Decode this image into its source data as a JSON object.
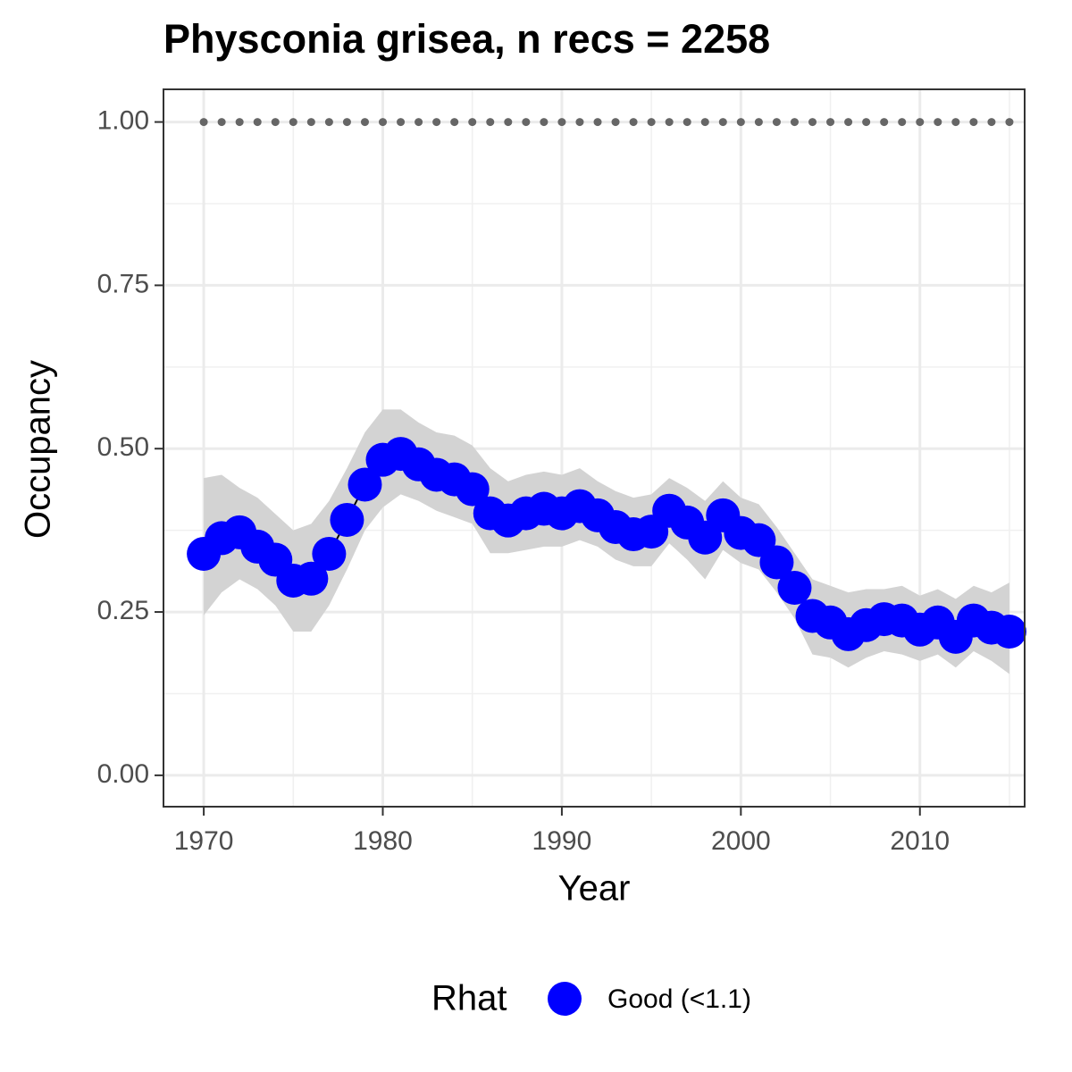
{
  "chart_data": {
    "type": "line",
    "title": "Physconia grisea, n recs = 2258",
    "x_label": "Year",
    "y_label": "Occupancy",
    "legend_title": "Rhat",
    "x": [
      1970,
      1971,
      1972,
      1973,
      1974,
      1975,
      1976,
      1977,
      1978,
      1979,
      1980,
      1981,
      1982,
      1983,
      1984,
      1985,
      1986,
      1987,
      1988,
      1989,
      1990,
      1991,
      1992,
      1993,
      1994,
      1995,
      1996,
      1997,
      1998,
      1999,
      2000,
      2001,
      2002,
      2003,
      2004,
      2005,
      2006,
      2007,
      2008,
      2009,
      2010,
      2011,
      2012,
      2013,
      2014,
      2015
    ],
    "series": [
      {
        "name": "Good (<1.1)",
        "color": "#0000ff",
        "values": [
          0.339,
          0.363,
          0.372,
          0.35,
          0.33,
          0.298,
          0.301,
          0.339,
          0.391,
          0.445,
          0.483,
          0.492,
          0.476,
          0.46,
          0.453,
          0.438,
          0.401,
          0.39,
          0.401,
          0.408,
          0.401,
          0.412,
          0.398,
          0.38,
          0.369,
          0.373,
          0.405,
          0.387,
          0.364,
          0.398,
          0.371,
          0.36,
          0.326,
          0.287,
          0.244,
          0.234,
          0.216,
          0.23,
          0.239,
          0.237,
          0.223,
          0.234,
          0.212,
          0.237,
          0.226,
          0.22
        ],
        "upper": [
          0.455,
          0.46,
          0.44,
          0.425,
          0.4,
          0.375,
          0.385,
          0.42,
          0.47,
          0.525,
          0.56,
          0.56,
          0.54,
          0.525,
          0.52,
          0.505,
          0.47,
          0.45,
          0.46,
          0.465,
          0.46,
          0.47,
          0.45,
          0.435,
          0.425,
          0.43,
          0.455,
          0.44,
          0.42,
          0.45,
          0.425,
          0.415,
          0.38,
          0.34,
          0.3,
          0.29,
          0.28,
          0.285,
          0.285,
          0.29,
          0.275,
          0.285,
          0.27,
          0.29,
          0.28,
          0.295
        ],
        "lower": [
          0.245,
          0.28,
          0.3,
          0.285,
          0.26,
          0.22,
          0.22,
          0.26,
          0.315,
          0.375,
          0.41,
          0.43,
          0.42,
          0.405,
          0.395,
          0.385,
          0.34,
          0.34,
          0.345,
          0.35,
          0.35,
          0.36,
          0.35,
          0.33,
          0.32,
          0.32,
          0.355,
          0.33,
          0.3,
          0.345,
          0.325,
          0.315,
          0.28,
          0.24,
          0.185,
          0.18,
          0.165,
          0.18,
          0.19,
          0.185,
          0.175,
          0.185,
          0.165,
          0.19,
          0.175,
          0.155
        ]
      }
    ],
    "dotted_values": [
      1,
      1,
      1,
      1,
      1,
      1,
      1,
      1,
      1,
      1,
      1,
      1,
      1,
      1,
      1,
      1,
      1,
      1,
      1,
      1,
      1,
      1,
      1,
      1,
      1,
      1,
      1,
      1,
      1,
      1,
      1,
      1,
      1,
      1,
      1,
      1,
      1,
      1,
      1,
      1,
      1,
      1,
      1,
      1,
      1,
      1
    ],
    "dotted_color": "#666666",
    "band_color": "#d3d3d3",
    "xlim": [
      1967.75,
      2015.85
    ],
    "ylim": [
      -0.048,
      1.05
    ],
    "xticks": [
      1970,
      1980,
      1990,
      2000,
      2010
    ],
    "yticks": [
      {
        "value": 0,
        "label": "0.00"
      },
      {
        "value": 0.25,
        "label": "0.25"
      },
      {
        "value": 0.5,
        "label": "0.50"
      },
      {
        "value": 0.75,
        "label": "0.75"
      },
      {
        "value": 1,
        "label": "1.00"
      }
    ],
    "xminor": [
      1975,
      1985,
      1995,
      2005,
      2015
    ],
    "yminor": [
      0.125,
      0.375,
      0.625,
      0.875
    ],
    "grid": true
  }
}
